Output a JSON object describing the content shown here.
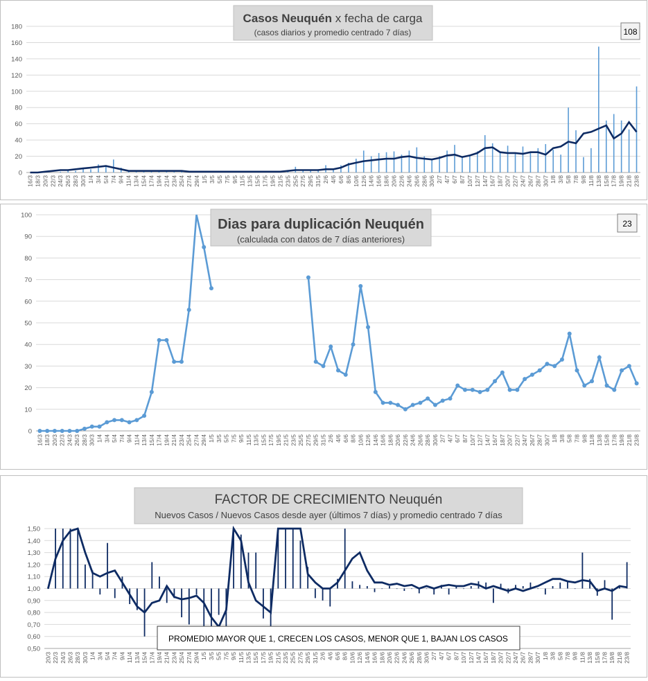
{
  "colors": {
    "bar": "#5b9bd5",
    "avg": "#0e2b63",
    "dup": "#5b9bd5",
    "factor": "#0e2b63"
  },
  "charts": [
    {
      "type": "bar",
      "title_bold": "Casos Neuquén",
      "title_rest": " x fecha de carga",
      "subtitle": "(casos diarios y promedio  centrado 7 días)",
      "badge": "108",
      "y_ticks": [
        "0",
        "20",
        "40",
        "60",
        "80",
        "100",
        "120",
        "140",
        "160",
        "180"
      ],
      "x_labels": [
        "16/3",
        "18/3",
        "20/3",
        "22/3",
        "24/3",
        "26/3",
        "28/3",
        "30/3",
        "1/4",
        "3/4",
        "5/4",
        "7/4",
        "9/4",
        "11/4",
        "13/4",
        "15/4",
        "17/4",
        "19/4",
        "21/4",
        "23/4",
        "25/4",
        "27/4",
        "29/4",
        "1/5",
        "3/5",
        "5/5",
        "7/5",
        "9/5",
        "11/5",
        "13/5",
        "15/5",
        "17/5",
        "19/5",
        "21/5",
        "23/5",
        "25/5",
        "27/5",
        "29/5",
        "31/5",
        "2/6",
        "4/6",
        "6/6",
        "8/6",
        "10/6",
        "12/6",
        "14/6",
        "16/6",
        "18/6",
        "20/6",
        "22/6",
        "24/6",
        "26/6",
        "28/6",
        "30/6",
        "2/7",
        "4/7",
        "6/7",
        "8/7",
        "10/7",
        "12/7",
        "14/7",
        "16/7",
        "18/7",
        "20/7",
        "22/7",
        "24/7",
        "26/7",
        "28/7",
        "30/7",
        "1/8",
        "3/8",
        "5/8",
        "7/8",
        "9/8",
        "11/8",
        "13/8",
        "15/8",
        "17/8",
        "19/8",
        "21/8",
        "23/8"
      ]
    },
    {
      "type": "line",
      "title": "Dias para duplicación Neuquén",
      "subtitle": "(calculada con datos de 7 días anteriores)",
      "badge": "23",
      "y_ticks": [
        "0",
        "10",
        "20",
        "30",
        "40",
        "50",
        "60",
        "70",
        "80",
        "90",
        "100"
      ],
      "x_labels": [
        "16/3",
        "18/3",
        "20/3",
        "22/3",
        "24/3",
        "26/3",
        "28/3",
        "30/3",
        "1/4",
        "3/4",
        "5/4",
        "7/4",
        "9/4",
        "11/4",
        "13/4",
        "15/4",
        "17/4",
        "19/4",
        "21/4",
        "23/4",
        "25/4",
        "27/4",
        "29/4",
        "1/5",
        "3/5",
        "5/5",
        "7/5",
        "9/5",
        "11/5",
        "13/5",
        "15/5",
        "17/5",
        "19/5",
        "21/5",
        "23/5",
        "25/5",
        "27/5",
        "29/5",
        "31/5",
        "2/6",
        "4/6",
        "6/6",
        "8/6",
        "10/6",
        "12/6",
        "14/6",
        "16/6",
        "18/6",
        "20/6",
        "22/6",
        "24/6",
        "26/6",
        "28/6",
        "30/6",
        "2/7",
        "4/7",
        "6/7",
        "8/7",
        "10/7",
        "12/7",
        "14/7",
        "16/7",
        "18/7",
        "20/7",
        "22/7",
        "24/7",
        "26/7",
        "28/7",
        "30/7",
        "1/8",
        "3/8",
        "5/8",
        "7/8",
        "9/8",
        "11/8",
        "13/8",
        "15/8",
        "17/8",
        "19/8",
        "21/8",
        "23/8"
      ]
    },
    {
      "type": "bar",
      "title_main": "FACTOR DE CRECIMIENTO",
      "title_rest": " Neuquén",
      "subtitle": "Nuevos Casos  / Nuevos Casos desde ayer (últimos 7 días) y promedio  centrado  7 días",
      "note": "PROMEDIO MAYOR QUE 1, CRECEN LOS CASOS, MENOR QUE 1, BAJAN LOS CASOS",
      "y_ticks": [
        "0,50",
        "0,60",
        "0,70",
        "0,80",
        "0,90",
        "1,00",
        "1,10",
        "1,20",
        "1,30",
        "1,40",
        "1,50"
      ],
      "x_labels": [
        "20/3",
        "22/3",
        "24/3",
        "26/3",
        "28/3",
        "30/3",
        "1/4",
        "3/4",
        "5/4",
        "7/4",
        "9/4",
        "11/4",
        "13/4",
        "15/4",
        "17/4",
        "19/4",
        "21/4",
        "23/4",
        "25/4",
        "27/4",
        "29/4",
        "1/5",
        "3/5",
        "5/5",
        "7/5",
        "9/5",
        "11/5",
        "13/5",
        "15/5",
        "17/5",
        "19/5",
        "21/5",
        "23/5",
        "25/5",
        "27/5",
        "29/5",
        "31/5",
        "2/6",
        "4/6",
        "6/6",
        "8/6",
        "10/6",
        "12/6",
        "14/6",
        "16/6",
        "18/6",
        "20/6",
        "22/6",
        "24/6",
        "26/6",
        "28/6",
        "30/6",
        "2/7",
        "4/7",
        "6/7",
        "8/7",
        "10/7",
        "12/7",
        "14/7",
        "16/7",
        "18/7",
        "20/7",
        "22/7",
        "24/7",
        "26/7",
        "28/7",
        "30/7",
        "1/8",
        "3/8",
        "5/8",
        "7/8",
        "9/8",
        "11/8",
        "13/8",
        "15/8",
        "17/8",
        "19/8",
        "21/8",
        "23/8"
      ]
    }
  ],
  "chart_data": [
    {
      "type": "bar",
      "title": "Casos Neuquén x fecha de carga",
      "subtitle": "(casos diarios y promedio  centrado 7 días)",
      "ylim": [
        0,
        180
      ],
      "x": [
        "16/3",
        "18/3",
        "20/3",
        "22/3",
        "24/3",
        "26/3",
        "28/3",
        "30/3",
        "1/4",
        "3/4",
        "5/4",
        "7/4",
        "9/4",
        "11/4",
        "13/4",
        "15/4",
        "17/4",
        "19/4",
        "21/4",
        "23/4",
        "25/4",
        "27/4",
        "29/4",
        "1/5",
        "3/5",
        "5/5",
        "7/5",
        "9/5",
        "11/5",
        "13/5",
        "15/5",
        "17/5",
        "19/5",
        "21/5",
        "23/5",
        "25/5",
        "27/5",
        "29/5",
        "31/5",
        "2/6",
        "4/6",
        "6/6",
        "8/6",
        "10/6",
        "12/6",
        "14/6",
        "16/6",
        "18/6",
        "20/6",
        "22/6",
        "24/6",
        "26/6",
        "28/6",
        "30/6",
        "2/7",
        "4/7",
        "6/7",
        "8/7",
        "10/7",
        "12/7",
        "14/7",
        "16/7",
        "18/7",
        "20/7",
        "22/7",
        "24/7",
        "26/7",
        "28/7",
        "30/7",
        "1/8",
        "3/8",
        "5/8",
        "7/8",
        "9/8",
        "11/8",
        "13/8",
        "15/8",
        "17/8",
        "19/8",
        "21/8",
        "23/8"
      ],
      "series": [
        {
          "kind": "bar",
          "values": [
            0,
            0,
            0,
            0,
            1,
            3,
            2,
            5,
            4,
            10,
            8,
            16,
            6,
            3,
            2,
            2,
            2,
            2,
            2,
            1,
            2,
            1,
            1,
            0,
            0,
            0,
            1,
            0,
            1,
            1,
            0,
            0,
            1,
            2,
            3,
            7,
            3,
            2,
            4,
            9,
            4,
            9,
            12,
            17,
            27,
            20,
            24,
            25,
            26,
            22,
            27,
            31,
            20,
            15,
            20,
            27,
            34,
            19,
            20,
            26,
            46,
            36,
            25,
            33,
            23,
            32,
            26,
            30,
            35,
            28,
            22,
            80,
            52,
            19,
            30,
            155,
            64,
            72,
            64,
            53,
            106
          ]
        },
        {
          "kind": "line",
          "values": [
            0,
            0,
            1,
            2,
            3,
            3,
            4,
            5,
            6,
            7,
            8,
            6,
            4,
            2,
            2,
            2,
            2,
            2,
            2,
            2,
            2,
            1,
            1,
            1,
            1,
            1,
            1,
            1,
            1,
            1,
            1,
            1,
            1,
            1,
            2,
            3,
            3,
            3,
            3,
            4,
            4,
            6,
            10,
            12,
            14,
            15,
            16,
            17,
            17,
            19,
            20,
            18,
            17,
            16,
            18,
            21,
            22,
            19,
            21,
            24,
            30,
            31,
            25,
            24,
            24,
            23,
            25,
            25,
            22,
            30,
            32,
            38,
            36,
            48,
            50,
            54,
            58,
            42,
            48,
            62,
            50
          ]
        }
      ]
    },
    {
      "type": "line",
      "title": "Dias para duplicación Neuquén",
      "subtitle": "(calculada con datos de 7 días anteriores)",
      "ylim": [
        0,
        100
      ],
      "x": [
        "16/3",
        "18/3",
        "20/3",
        "22/3",
        "24/3",
        "26/3",
        "28/3",
        "30/3",
        "1/4",
        "3/4",
        "5/4",
        "7/4",
        "9/4",
        "11/4",
        "13/4",
        "15/4",
        "17/4",
        "19/4",
        "21/4",
        "23/4",
        "25/4",
        "27/4",
        "29/4",
        "1/5",
        "3/5",
        "5/5",
        "7/5",
        "9/5",
        "11/5",
        "13/5",
        "15/5",
        "17/5",
        "19/5",
        "21/5",
        "23/5",
        "25/5",
        "27/5",
        "29/5",
        "31/5",
        "2/6",
        "4/6",
        "6/6",
        "8/6",
        "10/6",
        "12/6",
        "14/6",
        "16/6",
        "18/6",
        "20/6",
        "22/6",
        "24/6",
        "26/6",
        "28/6",
        "30/6",
        "2/7",
        "4/7",
        "6/7",
        "8/7",
        "10/7",
        "12/7",
        "14/7",
        "16/7",
        "18/7",
        "20/7",
        "22/7",
        "24/7",
        "26/7",
        "28/7",
        "30/7",
        "1/8",
        "3/8",
        "5/8",
        "7/8",
        "9/8",
        "11/8",
        "13/8",
        "15/8",
        "17/8",
        "19/8",
        "21/8",
        "23/8"
      ],
      "values": [
        0,
        0,
        0,
        0,
        0,
        0,
        1,
        2,
        2,
        4,
        5,
        5,
        4,
        5,
        7,
        18,
        42,
        42,
        32,
        32,
        56,
        100,
        85,
        66,
        null,
        null,
        null,
        null,
        null,
        null,
        null,
        null,
        null,
        null,
        null,
        null,
        71,
        32,
        30,
        39,
        28,
        26,
        40,
        67,
        48,
        18,
        13,
        13,
        12,
        10,
        12,
        13,
        15,
        12,
        14,
        15,
        21,
        19,
        19,
        18,
        19,
        23,
        27,
        19,
        19,
        24,
        26,
        28,
        31,
        30,
        33,
        45,
        28,
        21,
        23,
        34,
        21,
        19,
        28,
        30,
        22
      ]
    },
    {
      "type": "bar",
      "title": "FACTOR DE CRECIMIENTO Neuquén",
      "subtitle": "Nuevos Casos  / Nuevos Casos desde ayer (últimos 7 días) y promedio  centrado  7 días",
      "ylim": [
        0.5,
        1.5
      ],
      "x": [
        "20/3",
        "22/3",
        "24/3",
        "26/3",
        "28/3",
        "30/3",
        "1/4",
        "3/4",
        "5/4",
        "7/4",
        "9/4",
        "11/4",
        "13/4",
        "15/4",
        "17/4",
        "19/4",
        "21/4",
        "23/4",
        "25/4",
        "27/4",
        "29/4",
        "1/5",
        "3/5",
        "5/5",
        "7/5",
        "9/5",
        "11/5",
        "13/5",
        "15/5",
        "17/5",
        "19/5",
        "21/5",
        "23/5",
        "25/5",
        "27/5",
        "29/5",
        "31/5",
        "2/6",
        "4/6",
        "6/6",
        "8/6",
        "10/6",
        "12/6",
        "14/6",
        "16/6",
        "18/6",
        "20/6",
        "22/6",
        "24/6",
        "26/6",
        "28/6",
        "30/6",
        "2/7",
        "4/7",
        "6/7",
        "8/7",
        "10/7",
        "12/7",
        "14/7",
        "16/7",
        "18/7",
        "20/7",
        "22/7",
        "24/7",
        "26/7",
        "28/7",
        "30/7",
        "1/8",
        "3/8",
        "5/8",
        "7/8",
        "9/8",
        "11/8",
        "13/8",
        "15/8",
        "17/8",
        "19/8",
        "21/8",
        "23/8"
      ],
      "series": [
        {
          "kind": "bar",
          "values": [
            1.0,
            1.5,
            1.5,
            1.5,
            1.5,
            1.2,
            1.15,
            0.95,
            1.38,
            0.92,
            1.1,
            0.87,
            0.82,
            0.6,
            1.22,
            1.1,
            0.88,
            0.92,
            0.76,
            0.7,
            0.95,
            0.5,
            0.52,
            0.78,
            0.68,
            1.5,
            1.45,
            1.3,
            1.3,
            0.75,
            0.6,
            1.5,
            1.5,
            1.5,
            1.4,
            1.18,
            0.92,
            0.9,
            0.85,
            1.08,
            1.5,
            1.06,
            1.03,
            1.02,
            0.97,
            1.0,
            1.02,
            1.0,
            0.98,
            1.0,
            0.96,
            1.0,
            0.95,
            1.03,
            0.95,
            1.02,
            1.0,
            1.02,
            1.06,
            1.05,
            0.88,
            1.04,
            0.96,
            1.03,
            1.02,
            1.05,
            1.0,
            0.95,
            1.02,
            1.05,
            1.06,
            1.0,
            1.3,
            1.08,
            0.94,
            1.07,
            0.74,
            1.02,
            1.22
          ]
        },
        {
          "kind": "line",
          "values": [
            1.0,
            1.25,
            1.4,
            1.48,
            1.5,
            1.3,
            1.13,
            1.1,
            1.13,
            1.15,
            1.05,
            0.95,
            0.85,
            0.8,
            0.88,
            0.9,
            1.02,
            0.93,
            0.91,
            0.92,
            0.94,
            0.88,
            0.76,
            0.68,
            0.82,
            1.5,
            1.4,
            1.05,
            0.9,
            0.85,
            0.8,
            1.5,
            1.5,
            1.5,
            1.5,
            1.12,
            1.05,
            1.0,
            1.0,
            1.05,
            1.15,
            1.25,
            1.3,
            1.15,
            1.05,
            1.05,
            1.03,
            1.04,
            1.02,
            1.03,
            1.0,
            1.02,
            1.0,
            1.02,
            1.03,
            1.02,
            1.02,
            1.04,
            1.03,
            1.0,
            1.02,
            1.0,
            0.98,
            1.0,
            0.98,
            1.0,
            1.02,
            1.05,
            1.08,
            1.08,
            1.06,
            1.05,
            1.07,
            1.06,
            0.98,
            1.0,
            0.98,
            1.02,
            1.01
          ]
        }
      ]
    }
  ]
}
